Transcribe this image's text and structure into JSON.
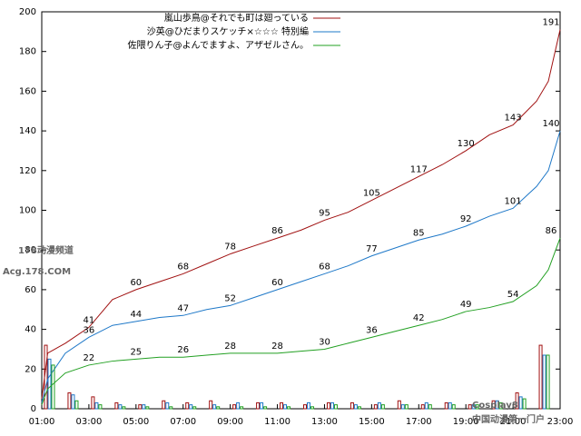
{
  "chart_data": {
    "type": "line",
    "x": [
      1,
      1.25,
      2,
      3,
      4,
      5,
      6,
      7,
      8,
      9,
      10,
      11,
      12,
      13,
      14,
      15,
      16,
      17,
      18,
      19,
      20,
      21,
      22,
      22.5,
      23
    ],
    "series": [
      {
        "name": "嵐山歩鳥@それでも町は廻っている",
        "color": "#a01010",
        "values": [
          5,
          28,
          33,
          41,
          55,
          60,
          64,
          68,
          73,
          78,
          82,
          86,
          90,
          95,
          99,
          105,
          111,
          117,
          123,
          130,
          138,
          143,
          155,
          165,
          191
        ],
        "bar_values": [
          32,
          8,
          6,
          3,
          2,
          4,
          3,
          4,
          2,
          3,
          3,
          2,
          3,
          3,
          2,
          4,
          2,
          3,
          2,
          4,
          8,
          32
        ]
      },
      {
        "name": "沙英@ひだまりスケッチ×☆☆☆ 特別編",
        "color": "#1e78c8",
        "values": [
          3,
          15,
          28,
          36,
          42,
          44,
          46,
          47,
          50,
          52,
          56,
          60,
          64,
          68,
          72,
          77,
          81,
          85,
          88,
          92,
          97,
          101,
          112,
          120,
          140
        ],
        "bar_values": [
          25,
          7,
          3,
          2,
          2,
          3,
          2,
          2,
          3,
          3,
          2,
          3,
          3,
          2,
          3,
          2,
          3,
          3,
          2,
          4,
          6,
          27
        ]
      },
      {
        "name": "佐隈りん子@よんでますよ、アザゼルさん。",
        "color": "#22a022",
        "values": [
          2,
          10,
          18,
          22,
          24,
          25,
          26,
          26,
          27,
          28,
          28,
          28,
          29,
          30,
          33,
          36,
          39,
          42,
          45,
          49,
          51,
          54,
          62,
          70,
          86
        ],
        "bar_values": [
          22,
          4,
          2,
          1,
          1,
          1,
          1,
          1,
          1,
          1,
          1,
          1,
          2,
          1,
          2,
          2,
          2,
          2,
          2,
          3,
          5,
          27
        ]
      }
    ],
    "bins": [
      1,
      2,
      3,
      4,
      5,
      6,
      7,
      8,
      9,
      10,
      11,
      12,
      13,
      14,
      15,
      16,
      17,
      18,
      19,
      20,
      21,
      22,
      23
    ],
    "xlim": [
      1,
      23
    ],
    "xticks": [
      {
        "value": 1,
        "label": "01:00"
      },
      {
        "value": 3,
        "label": "03:00"
      },
      {
        "value": 5,
        "label": "05:00"
      },
      {
        "value": 7,
        "label": "07:00"
      },
      {
        "value": 9,
        "label": "09:00"
      },
      {
        "value": 11,
        "label": "11:00"
      },
      {
        "value": 13,
        "label": "13:00"
      },
      {
        "value": 15,
        "label": "15:00"
      },
      {
        "value": 17,
        "label": "17:00"
      },
      {
        "value": 19,
        "label": "19:00"
      },
      {
        "value": 21,
        "label": "21:00"
      },
      {
        "value": 23,
        "label": "23:00"
      }
    ],
    "ylim": [
      0,
      200
    ],
    "yticks": [
      0,
      20,
      40,
      60,
      80,
      100,
      120,
      140,
      160,
      180,
      200
    ],
    "legend": "top-right",
    "watermarks": [
      "178动漫频道",
      "Acg.178.COM",
      "Cosplay8",
      "中国动漫第一门户"
    ]
  }
}
